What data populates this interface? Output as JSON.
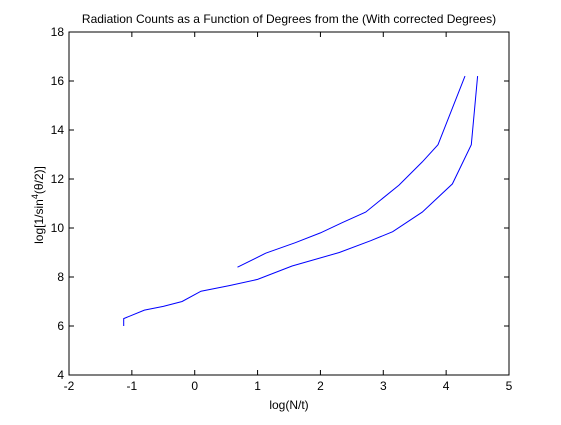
{
  "chart_data": {
    "type": "line",
    "title": "Radiation Counts as a Function of Degrees from the (With corrected Degrees)",
    "xlabel": "log(N/t)",
    "ylabel_prefix": "log[1/sin",
    "ylabel_superscript": "4",
    "ylabel_suffix": "(θ/2)]",
    "xlim": [
      -2,
      5
    ],
    "ylim": [
      4,
      18
    ],
    "xticks": [
      -2,
      -1,
      0,
      1,
      2,
      3,
      4,
      5
    ],
    "yticks": [
      4,
      6,
      8,
      10,
      12,
      14,
      16,
      18
    ],
    "grid": false,
    "series_color": "#0000ff",
    "series": [
      {
        "x": [
          0.68,
          1.13,
          1.6,
          2.0,
          2.35,
          2.72,
          3.25,
          3.62,
          3.87,
          4.3
        ],
        "y": [
          8.4,
          8.97,
          9.4,
          9.8,
          10.22,
          10.65,
          11.75,
          12.7,
          13.4,
          16.2
        ]
      },
      {
        "x": [
          -1.13,
          -1.13,
          -0.8,
          -0.5,
          -0.2,
          0.1,
          0.55,
          1.0,
          1.55,
          2.3,
          2.8,
          3.15,
          3.62,
          4.1,
          4.4,
          4.5
        ],
        "y": [
          6.0,
          6.3,
          6.65,
          6.8,
          7.0,
          7.42,
          7.65,
          7.9,
          8.45,
          9.0,
          9.48,
          9.85,
          10.65,
          11.8,
          13.4,
          16.2
        ]
      }
    ]
  }
}
